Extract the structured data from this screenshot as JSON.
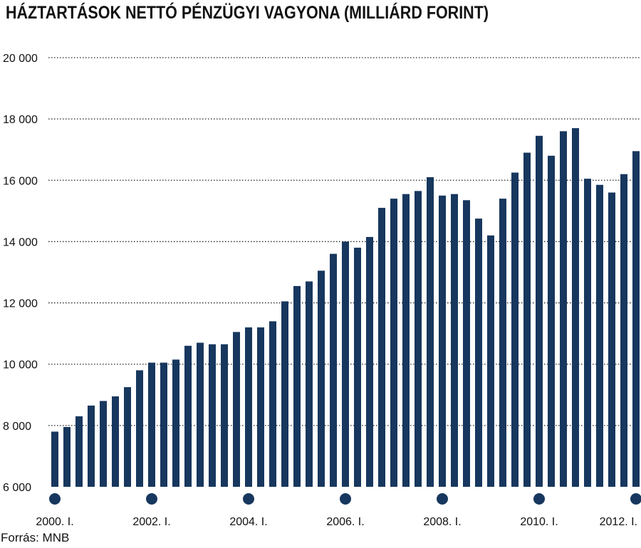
{
  "title": "HÁZTARTÁSOK NETTÓ PÉNZÜGYI VAGYONA (MILLIÁRD FORINT)",
  "source": "Forrás: MNB",
  "colors": {
    "bar": "#17375e",
    "marker": "#17375e",
    "grid": "#222222"
  },
  "chart_data": {
    "type": "bar",
    "title": "HÁZTARTÁSOK NETTÓ PÉNZÜGYI VAGYONA (MILLIÁRD FORINT)",
    "xlabel": "",
    "ylabel": "",
    "ylim": [
      6000,
      20000
    ],
    "y_ticks": [
      {
        "value": 6000,
        "label": "6 000"
      },
      {
        "value": 8000,
        "label": "8 000"
      },
      {
        "value": 10000,
        "label": "10 000"
      },
      {
        "value": 12000,
        "label": "12 000"
      },
      {
        "value": 14000,
        "label": "14 000"
      },
      {
        "value": 16000,
        "label": "16 000"
      },
      {
        "value": 18000,
        "label": "18 000"
      },
      {
        "value": 20000,
        "label": "20 000"
      }
    ],
    "grid": "horizontal dotted",
    "x_tick_labels": [
      {
        "index": 0,
        "label": "2000. I."
      },
      {
        "index": 8,
        "label": "2002. I."
      },
      {
        "index": 16,
        "label": "2004. I."
      },
      {
        "index": 24,
        "label": "2006. I."
      },
      {
        "index": 32,
        "label": "2008. I."
      },
      {
        "index": 40,
        "label": "2010. I."
      },
      {
        "index": 48,
        "label": "2012. I."
      }
    ],
    "values": [
      7800,
      7950,
      8300,
      8650,
      8800,
      8950,
      9250,
      9800,
      10050,
      10050,
      10150,
      10600,
      10700,
      10650,
      10650,
      11050,
      11200,
      11200,
      11400,
      12050,
      12550,
      12700,
      13050,
      13600,
      14000,
      13800,
      14150,
      15100,
      15400,
      15550,
      15650,
      16100,
      15500,
      15550,
      15350,
      14750,
      14200,
      15400,
      16250,
      16900,
      17450,
      16800,
      17600,
      17700,
      16050,
      15850,
      15600,
      16200,
      16950
    ]
  }
}
